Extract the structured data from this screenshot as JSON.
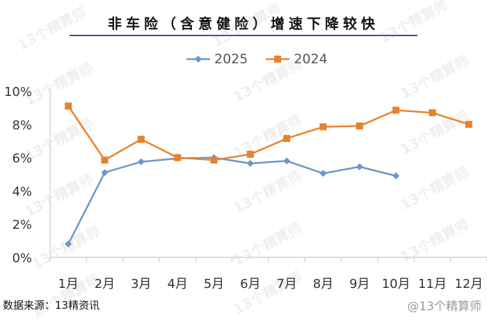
{
  "chart_data": {
    "type": "line",
    "title": "非车险（含意健险）增速下降较快",
    "categories": [
      "1月",
      "2月",
      "3月",
      "4月",
      "5月",
      "6月",
      "7月",
      "8月",
      "9月",
      "10月",
      "11月",
      "12月"
    ],
    "y_ticks": [
      "0%",
      "2%",
      "4%",
      "6%",
      "8%",
      "10%"
    ],
    "ylim": [
      0,
      10
    ],
    "legend_position": "top-center",
    "grid": false,
    "series": [
      {
        "name": "2025",
        "color": "#6d95c9",
        "marker": "diamond",
        "values": [
          0.8,
          5.1,
          5.75,
          5.95,
          6.0,
          5.65,
          5.8,
          5.05,
          5.45,
          4.9,
          null,
          null
        ]
      },
      {
        "name": "2024",
        "color": "#e6822e",
        "marker": "square",
        "values": [
          9.1,
          5.85,
          7.1,
          6.0,
          5.85,
          6.2,
          7.15,
          7.85,
          7.9,
          8.85,
          8.7,
          8.0
        ]
      }
    ]
  },
  "source": "数据来源：13精资讯",
  "watermark": "13个精算师",
  "credit": "@13个精算师"
}
